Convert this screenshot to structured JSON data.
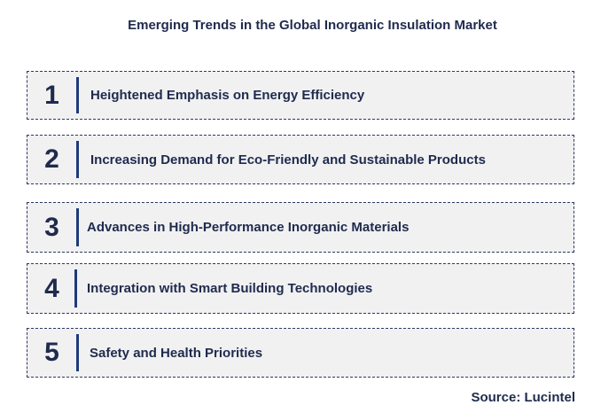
{
  "title": "Emerging Trends in the Global Inorganic Insulation Market",
  "trends": [
    {
      "number": "1",
      "label": "Heightened Emphasis on Energy Efficiency"
    },
    {
      "number": "2",
      "label": "Increasing Demand for Eco-Friendly and Sustainable Products"
    },
    {
      "number": "3",
      "label": "Advances in High-Performance Inorganic Materials"
    },
    {
      "number": "4",
      "label": "Integration with Smart Building Technologies"
    },
    {
      "number": "5",
      "label": "Safety and Health Priorities"
    }
  ],
  "source": "Source: Lucintel",
  "colors": {
    "text": "#1f2b4d",
    "accent_bar": "#1f3a7a",
    "row_background": "#f1f1f2",
    "row_border": "#2c3a63"
  }
}
